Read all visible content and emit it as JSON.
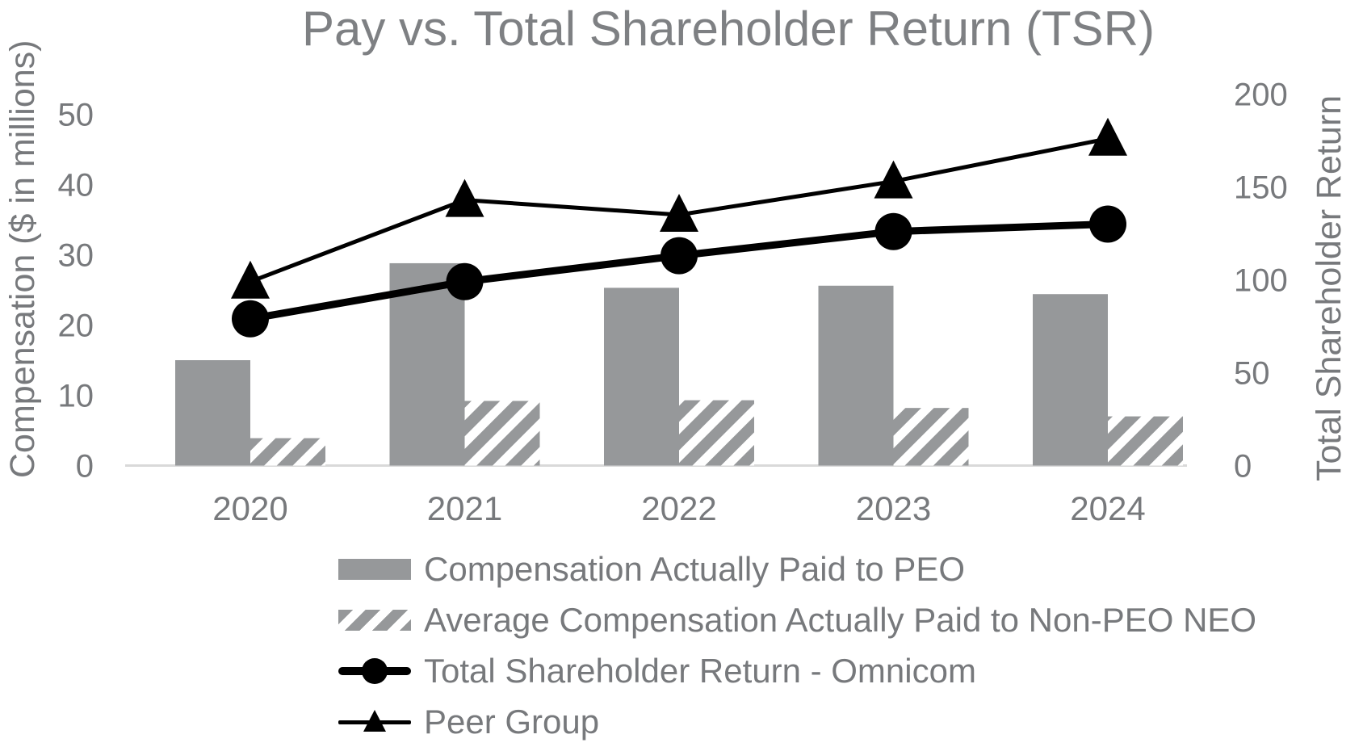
{
  "chart_data": {
    "type": "bar",
    "subtype": "dual-axis combo (clustered bars + lines)",
    "title": "Pay vs. Total Shareholder Return (TSR)",
    "categories": [
      "2020",
      "2021",
      "2022",
      "2023",
      "2024"
    ],
    "series": [
      {
        "name": "Compensation Actually Paid to PEO",
        "type": "bar",
        "pattern": "solid",
        "axis": "left",
        "values": [
          15.0,
          28.8,
          25.3,
          25.6,
          24.4
        ]
      },
      {
        "name": "Average Compensation Actually Paid to Non-PEO NEO",
        "type": "bar",
        "pattern": "hatched",
        "axis": "left",
        "values": [
          3.9,
          9.2,
          9.3,
          8.2,
          7.0
        ]
      },
      {
        "name": "Total Shareholder Return - Omnicom",
        "type": "line",
        "marker": "circle",
        "axis": "right",
        "values": [
          79,
          99,
          113,
          126,
          130
        ]
      },
      {
        "name": "Peer Group",
        "type": "line",
        "marker": "triangle",
        "axis": "right",
        "values": [
          99,
          143,
          135,
          153,
          176
        ]
      }
    ],
    "left_axis": {
      "label": "Compensation ($ in millions)",
      "ticks": [
        0,
        10,
        20,
        30,
        40,
        50
      ],
      "range": [
        0,
        50
      ]
    },
    "right_axis": {
      "label": "Total Shareholder Return",
      "ticks": [
        0,
        50,
        100,
        150,
        200
      ],
      "range": [
        0,
        200
      ]
    },
    "grid": false,
    "legend_position": "bottom-left",
    "colors": {
      "bar_fill": "#96989a",
      "hatch_stripe": "#96989a",
      "line": "#000000",
      "tick_text": "#77797c",
      "title_text": "#7e8083",
      "axis_line": "#d9d9d9"
    }
  }
}
